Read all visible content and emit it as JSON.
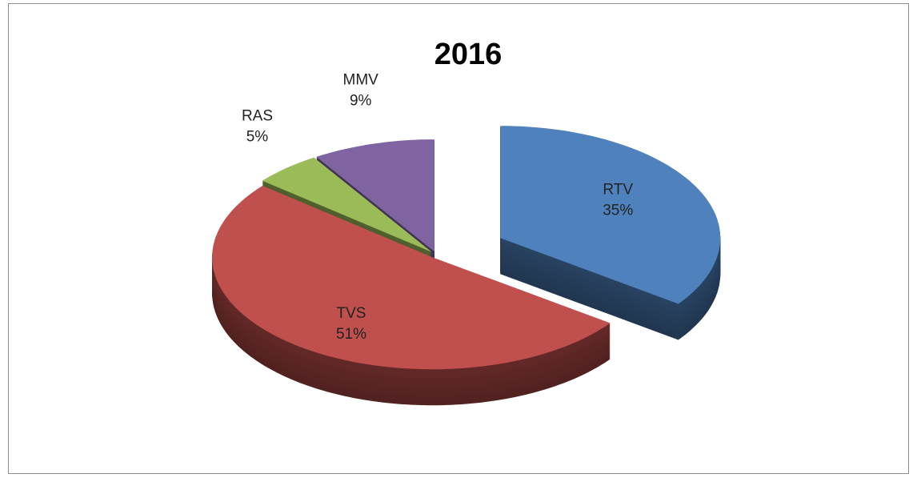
{
  "chart_data": {
    "type": "pie",
    "title": "2016",
    "categories": [
      "RTV",
      "TVS",
      "RAS",
      "MMV"
    ],
    "values": [
      35,
      51,
      5,
      9
    ],
    "value_labels": [
      "35%",
      "51%",
      "5%",
      "9%"
    ],
    "colors": [
      "#4f81bd",
      "#c0504d",
      "#9bbb59",
      "#8064a2"
    ],
    "legend": false
  }
}
